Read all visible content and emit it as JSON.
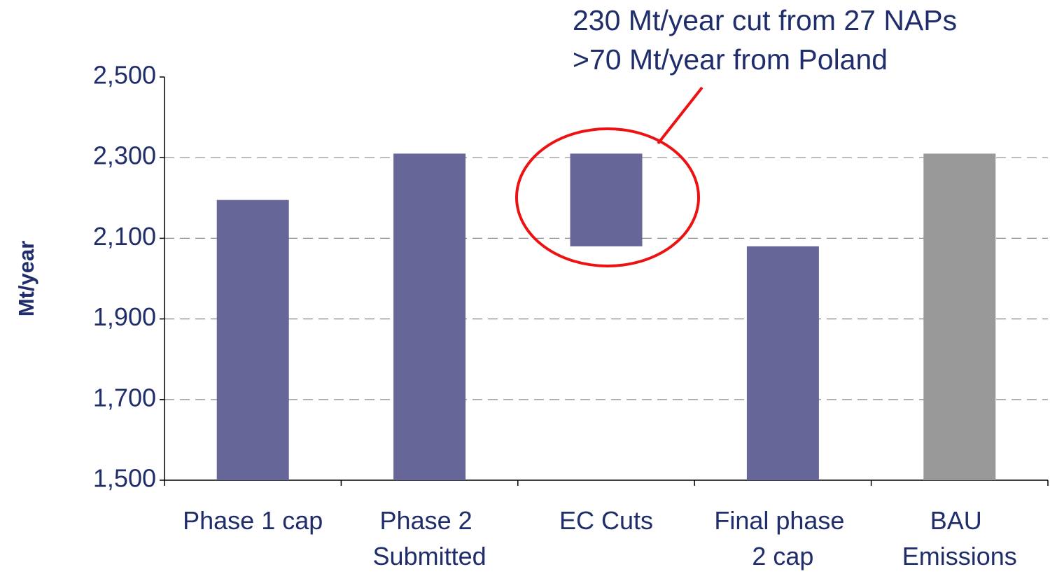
{
  "chart_data": {
    "type": "waterfall",
    "y_label": "Mt/year",
    "annotation": [
      "230 Mt/year cut from 27 NAPs",
      ">70 Mt/year from Poland"
    ],
    "categories": [
      "Phase 1 cap",
      "Phase 2 Submitted",
      "EC Cuts",
      "Final phase 2 cap",
      "BAU Emissions"
    ],
    "values": [
      2195,
      2310,
      -230,
      2080,
      2310
    ],
    "measure": [
      "absolute",
      "absolute",
      "relative",
      "absolute",
      "absolute"
    ],
    "colors": [
      "#666699",
      "#666699",
      "#666699",
      "#666699",
      "#999999"
    ],
    "ylim": [
      1500,
      2500
    ],
    "yticks": [
      {
        "value": 1500,
        "label": "1,500"
      },
      {
        "value": 1700,
        "label": "1,700"
      },
      {
        "value": 1900,
        "label": "1,900"
      },
      {
        "value": 2100,
        "label": "2,100"
      },
      {
        "value": 2300,
        "label": "2,300"
      },
      {
        "value": 2500,
        "label": "2,500"
      }
    ],
    "grid": true
  }
}
